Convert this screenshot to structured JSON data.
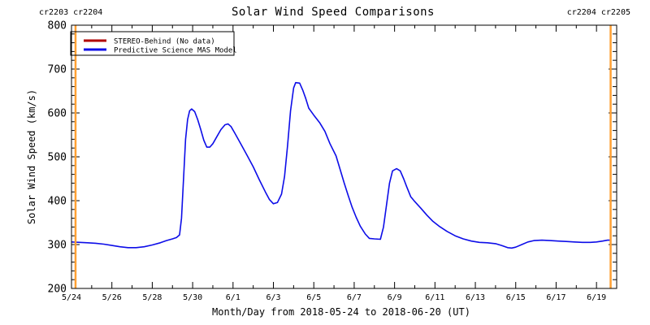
{
  "title": "Solar Wind Speed Comparisons",
  "annotations": {
    "top_left": "cr2203 cr2204",
    "top_right": "cr2204 cr2205"
  },
  "colors": {
    "stereo_red": "#B00000",
    "model_blue": "#0D0DE8",
    "carrington_orange": "#FFA033",
    "axis_black": "#000000"
  },
  "legend": {
    "items": [
      {
        "label": "STEREO-Behind (No data)",
        "color": "#B00000"
      },
      {
        "label": "Predictive Science MAS Model",
        "color": "#0D0DE8"
      }
    ]
  },
  "chart_data": {
    "type": "line",
    "title": "Solar Wind Speed Comparisons",
    "xlabel": "Month/Day from 2018-05-24 to 2018-06-20 (UT)",
    "ylabel": "Solar Wind Speed (km/s)",
    "x_start_date": "2018-05-24",
    "x_range_days": [
      0,
      27
    ],
    "x_tick_days": [
      0,
      2,
      4,
      6,
      8,
      10,
      12,
      14,
      16,
      18,
      20,
      22,
      24,
      26
    ],
    "x_tick_labels": [
      "5/24",
      "5/26",
      "5/28",
      "5/30",
      "6/1",
      "6/3",
      "6/5",
      "6/7",
      "6/9",
      "6/11",
      "6/13",
      "6/15",
      "6/17",
      "6/19"
    ],
    "x_minor_every_days": 1,
    "ylim": [
      200,
      800
    ],
    "y_ticks": [
      200,
      300,
      400,
      500,
      600,
      700,
      800
    ],
    "y_minor_every": 20,
    "grid": false,
    "legend_position": "top-left",
    "carrington_lines_days": [
      0.2,
      26.7
    ],
    "series": [
      {
        "name": "STEREO-Behind (No data)",
        "color": "#B00000",
        "points": []
      },
      {
        "name": "Predictive Science MAS Model",
        "color": "#0D0DE8",
        "points": [
          [
            0.0,
            306
          ],
          [
            0.4,
            305
          ],
          [
            0.8,
            304
          ],
          [
            1.2,
            303
          ],
          [
            1.6,
            301
          ],
          [
            2.0,
            298
          ],
          [
            2.4,
            295
          ],
          [
            2.8,
            293
          ],
          [
            3.2,
            293
          ],
          [
            3.6,
            295
          ],
          [
            4.0,
            299
          ],
          [
            4.4,
            304
          ],
          [
            4.7,
            309
          ],
          [
            5.0,
            313
          ],
          [
            5.2,
            316
          ],
          [
            5.35,
            322
          ],
          [
            5.45,
            360
          ],
          [
            5.55,
            450
          ],
          [
            5.65,
            540
          ],
          [
            5.75,
            585
          ],
          [
            5.85,
            605
          ],
          [
            5.95,
            609
          ],
          [
            6.1,
            603
          ],
          [
            6.25,
            585
          ],
          [
            6.4,
            562
          ],
          [
            6.55,
            538
          ],
          [
            6.7,
            522
          ],
          [
            6.85,
            522
          ],
          [
            7.0,
            530
          ],
          [
            7.2,
            546
          ],
          [
            7.4,
            562
          ],
          [
            7.6,
            573
          ],
          [
            7.75,
            575
          ],
          [
            7.9,
            569
          ],
          [
            8.1,
            553
          ],
          [
            8.4,
            528
          ],
          [
            8.7,
            503
          ],
          [
            9.0,
            477
          ],
          [
            9.3,
            448
          ],
          [
            9.6,
            420
          ],
          [
            9.8,
            403
          ],
          [
            10.0,
            393
          ],
          [
            10.2,
            396
          ],
          [
            10.4,
            415
          ],
          [
            10.55,
            455
          ],
          [
            10.7,
            525
          ],
          [
            10.85,
            605
          ],
          [
            11.0,
            657
          ],
          [
            11.1,
            669
          ],
          [
            11.3,
            668
          ],
          [
            11.45,
            652
          ],
          [
            11.6,
            633
          ],
          [
            11.75,
            611
          ],
          [
            12.0,
            595
          ],
          [
            12.3,
            577
          ],
          [
            12.55,
            558
          ],
          [
            12.8,
            530
          ],
          [
            13.1,
            502
          ],
          [
            13.3,
            472
          ],
          [
            13.5,
            441
          ],
          [
            13.7,
            412
          ],
          [
            13.9,
            385
          ],
          [
            14.1,
            362
          ],
          [
            14.3,
            342
          ],
          [
            14.55,
            324
          ],
          [
            14.75,
            314
          ],
          [
            15.0,
            313
          ],
          [
            15.3,
            312
          ],
          [
            15.45,
            340
          ],
          [
            15.6,
            390
          ],
          [
            15.75,
            440
          ],
          [
            15.9,
            468
          ],
          [
            16.1,
            473
          ],
          [
            16.28,
            468
          ],
          [
            16.45,
            450
          ],
          [
            16.6,
            432
          ],
          [
            16.8,
            409
          ],
          [
            17.0,
            398
          ],
          [
            17.3,
            383
          ],
          [
            17.6,
            367
          ],
          [
            17.9,
            353
          ],
          [
            18.2,
            342
          ],
          [
            18.6,
            330
          ],
          [
            19.0,
            320
          ],
          [
            19.4,
            313
          ],
          [
            19.8,
            308
          ],
          [
            20.2,
            305
          ],
          [
            20.6,
            304
          ],
          [
            21.0,
            302
          ],
          [
            21.3,
            298
          ],
          [
            21.6,
            293
          ],
          [
            21.8,
            292
          ],
          [
            22.0,
            294
          ],
          [
            22.3,
            300
          ],
          [
            22.6,
            306
          ],
          [
            22.9,
            309
          ],
          [
            23.3,
            310
          ],
          [
            23.7,
            309
          ],
          [
            24.1,
            308
          ],
          [
            24.5,
            307
          ],
          [
            24.9,
            306
          ],
          [
            25.3,
            305
          ],
          [
            25.7,
            305
          ],
          [
            26.0,
            306
          ],
          [
            26.3,
            308
          ],
          [
            26.55,
            310
          ],
          [
            26.7,
            310
          ]
        ]
      }
    ]
  }
}
